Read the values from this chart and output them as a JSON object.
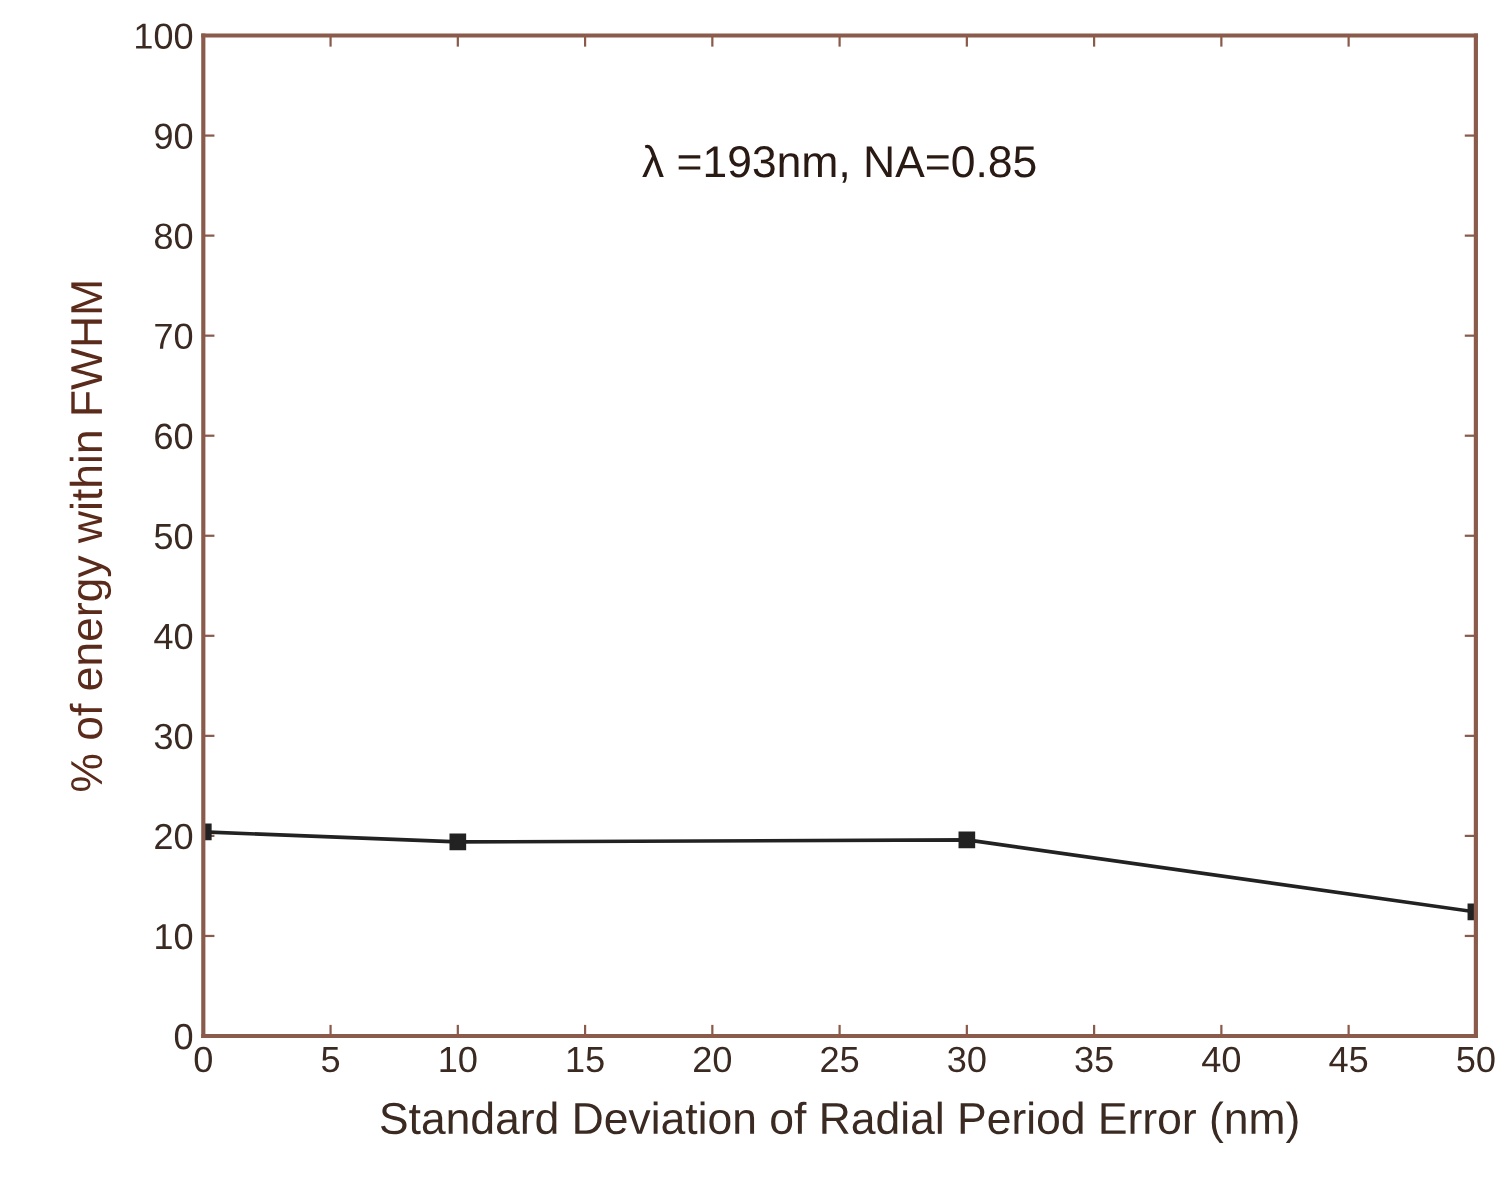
{
  "chart_data": {
    "type": "line",
    "xlabel": "Standard Deviation of Radial Period Error (nm)",
    "ylabel": "% of energy within FWHM",
    "annotations": [
      "λ =193nm, NA=0.85"
    ],
    "x": [
      0,
      10,
      30,
      50
    ],
    "series": [
      {
        "color": "#222222",
        "values": [
          20.4,
          19.4,
          19.6,
          12.4
        ]
      }
    ],
    "xlim": [
      0,
      50
    ],
    "xticks": [
      0,
      5,
      10,
      15,
      20,
      25,
      30,
      35,
      40,
      45,
      50
    ],
    "ylim": [
      0,
      100
    ],
    "yticks": [
      0,
      10,
      20,
      30,
      40,
      50,
      60,
      70,
      80,
      90,
      100
    ],
    "marker": "square",
    "line_style": "solid",
    "grid": false,
    "legend": false
  }
}
